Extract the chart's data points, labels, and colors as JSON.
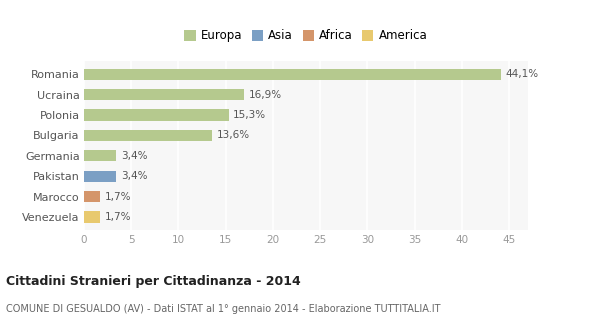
{
  "categories": [
    "Romania",
    "Ucraina",
    "Polonia",
    "Bulgaria",
    "Germania",
    "Pakistan",
    "Marocco",
    "Venezuela"
  ],
  "values": [
    44.1,
    16.9,
    15.3,
    13.6,
    3.4,
    3.4,
    1.7,
    1.7
  ],
  "labels": [
    "44,1%",
    "16,9%",
    "15,3%",
    "13,6%",
    "3,4%",
    "3,4%",
    "1,7%",
    "1,7%"
  ],
  "colors": [
    "#b5c98e",
    "#b5c98e",
    "#b5c98e",
    "#b5c98e",
    "#b5c98e",
    "#7b9fc4",
    "#d4956a",
    "#e8c96e"
  ],
  "legend_labels": [
    "Europa",
    "Asia",
    "Africa",
    "America"
  ],
  "legend_colors": [
    "#b5c98e",
    "#7b9fc4",
    "#d4956a",
    "#e8c96e"
  ],
  "title": "Cittadini Stranieri per Cittadinanza - 2014",
  "subtitle": "COMUNE DI GESUALDO (AV) - Dati ISTAT al 1° gennaio 2014 - Elaborazione TUTTITALIA.IT",
  "xlim": [
    0,
    47
  ],
  "xticks": [
    0,
    5,
    10,
    15,
    20,
    25,
    30,
    35,
    40,
    45
  ],
  "background_color": "#ffffff",
  "plot_bg_color": "#f7f7f7",
  "grid_color": "#ffffff",
  "bar_height": 0.55
}
